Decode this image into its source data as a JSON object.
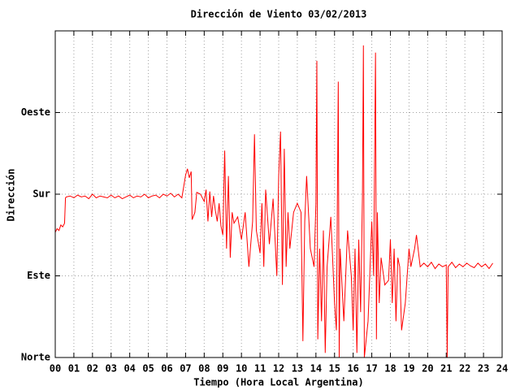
{
  "chart_data": {
    "type": "line",
    "title": "Dirección de Viento 03/02/2013",
    "xlabel": "Tiempo (Hora Local Argentina)",
    "ylabel": "Dirección",
    "xlim": [
      0,
      24
    ],
    "ylim": [
      0,
      360
    ],
    "xticks": [
      {
        "value": 0,
        "label": "00"
      },
      {
        "value": 1,
        "label": "01"
      },
      {
        "value": 2,
        "label": "02"
      },
      {
        "value": 3,
        "label": "03"
      },
      {
        "value": 4,
        "label": "04"
      },
      {
        "value": 5,
        "label": "05"
      },
      {
        "value": 6,
        "label": "06"
      },
      {
        "value": 7,
        "label": "07"
      },
      {
        "value": 8,
        "label": "08"
      },
      {
        "value": 9,
        "label": "09"
      },
      10,
      11,
      12,
      13,
      14,
      15,
      16,
      17,
      18,
      19,
      20,
      21,
      22,
      23,
      24
    ],
    "yticks": [
      {
        "value": 0,
        "label": "Norte"
      },
      {
        "value": 90,
        "label": "Este"
      },
      {
        "value": 180,
        "label": "Sur"
      },
      {
        "value": 270,
        "label": "Oeste"
      }
    ],
    "grid": true,
    "series": [
      {
        "color": "#ff0000",
        "x": [
          0,
          0.1,
          0.2,
          0.3,
          0.4,
          0.5,
          0.55,
          0.6,
          0.8,
          1.0,
          1.2,
          1.4,
          1.6,
          1.8,
          2.0,
          2.2,
          2.4,
          2.6,
          2.8,
          3.0,
          3.2,
          3.4,
          3.6,
          3.8,
          4.0,
          4.2,
          4.4,
          4.6,
          4.8,
          5.0,
          5.2,
          5.4,
          5.6,
          5.8,
          6.0,
          6.2,
          6.4,
          6.6,
          6.8,
          7.0,
          7.1,
          7.2,
          7.3,
          7.35,
          7.5,
          7.6,
          7.8,
          8.0,
          8.1,
          8.2,
          8.3,
          8.4,
          8.5,
          8.6,
          8.7,
          8.8,
          8.9,
          9.0,
          9.1,
          9.2,
          9.3,
          9.4,
          9.5,
          9.6,
          9.8,
          10.0,
          10.2,
          10.4,
          10.6,
          10.7,
          10.8,
          11.0,
          11.1,
          11.2,
          11.3,
          11.5,
          11.7,
          11.9,
          12.0,
          12.1,
          12.2,
          12.3,
          12.4,
          12.5,
          12.6,
          12.8,
          13.0,
          13.2,
          13.3,
          13.4,
          13.5,
          13.7,
          13.9,
          14.0,
          14.05,
          14.1,
          14.2,
          14.3,
          14.4,
          14.5,
          14.6,
          14.8,
          15.0,
          15.1,
          15.2,
          15.25,
          15.3,
          15.5,
          15.7,
          15.9,
          16.0,
          16.1,
          16.2,
          16.3,
          16.4,
          16.5,
          16.55,
          16.6,
          16.8,
          17.0,
          17.1,
          17.2,
          17.25,
          17.3,
          17.4,
          17.5,
          17.7,
          17.9,
          18.0,
          18.1,
          18.2,
          18.3,
          18.4,
          18.5,
          18.6,
          18.8,
          19.0,
          19.1,
          19.2,
          19.3,
          19.4,
          19.6,
          19.8,
          20.0,
          20.2,
          20.4,
          20.6,
          20.8,
          21.0,
          21.05,
          21.1,
          21.3,
          21.5,
          21.7,
          21.9,
          22.1,
          22.3,
          22.5,
          22.7,
          22.9,
          23.1,
          23.3,
          23.5
        ],
        "values": [
          138,
          142,
          140,
          146,
          144,
          148,
          176,
          177,
          178,
          176,
          179,
          177,
          178,
          175,
          180,
          176,
          178,
          177,
          176,
          179,
          176,
          178,
          175,
          177,
          179,
          176,
          178,
          177,
          180,
          176,
          178,
          179,
          176,
          180,
          178,
          181,
          177,
          180,
          176,
          201,
          208,
          198,
          205,
          152,
          160,
          182,
          180,
          172,
          185,
          150,
          183,
          155,
          178,
          162,
          150,
          170,
          145,
          135,
          228,
          120,
          200,
          110,
          160,
          148,
          155,
          130,
          160,
          100,
          150,
          246,
          140,
          115,
          170,
          100,
          185,
          125,
          175,
          90,
          200,
          249,
          80,
          230,
          100,
          160,
          120,
          160,
          170,
          160,
          18,
          150,
          200,
          120,
          100,
          170,
          327,
          20,
          120,
          40,
          140,
          5,
          100,
          155,
          60,
          30,
          304,
          0,
          120,
          40,
          140,
          90,
          30,
          120,
          5,
          130,
          50,
          180,
          344,
          0,
          40,
          150,
          90,
          336,
          20,
          160,
          60,
          110,
          80,
          85,
          130,
          60,
          120,
          40,
          110,
          100,
          30,
          60,
          120,
          100,
          110,
          120,
          135,
          100,
          104,
          100,
          105,
          98,
          103,
          100,
          102,
          0,
          100,
          105,
          99,
          103,
          100,
          104,
          101,
          99,
          104,
          100,
          103,
          98,
          104
        ]
      }
    ]
  }
}
